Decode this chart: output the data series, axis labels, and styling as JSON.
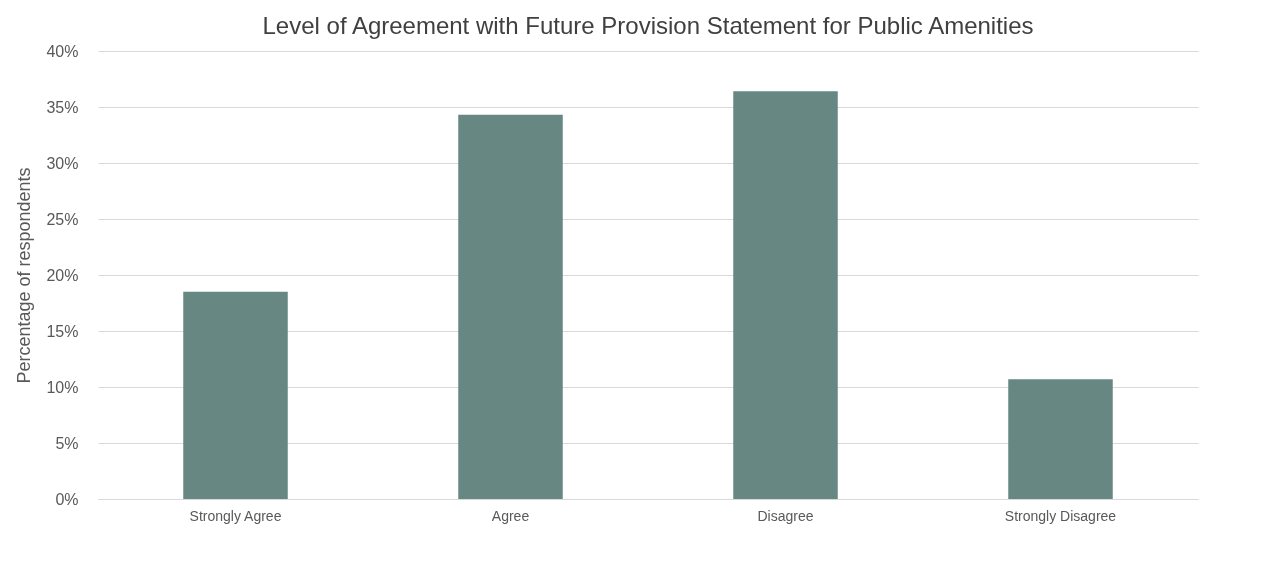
{
  "chart_data": {
    "type": "bar",
    "title": "Level of Agreement with Future Provision Statement for Public Amenities",
    "ylabel": "Percentage of respondents",
    "categories": [
      "Strongly Agree",
      "Agree",
      "Disagree",
      "Strongly Disagree"
    ],
    "values": [
      18.5,
      34.3,
      36.4,
      10.7
    ],
    "color": "#678783",
    "ylim": [
      0,
      40
    ],
    "yticks": [
      {
        "value": 0,
        "label": "0%"
      },
      {
        "value": 5,
        "label": "5%"
      },
      {
        "value": 10,
        "label": "10%"
      },
      {
        "value": 15,
        "label": "15%"
      },
      {
        "value": 20,
        "label": "20%"
      },
      {
        "value": 25,
        "label": "25%"
      },
      {
        "value": 30,
        "label": "30%"
      },
      {
        "value": 35,
        "label": "35%"
      },
      {
        "value": 40,
        "label": "40%"
      }
    ],
    "grid": "y"
  }
}
